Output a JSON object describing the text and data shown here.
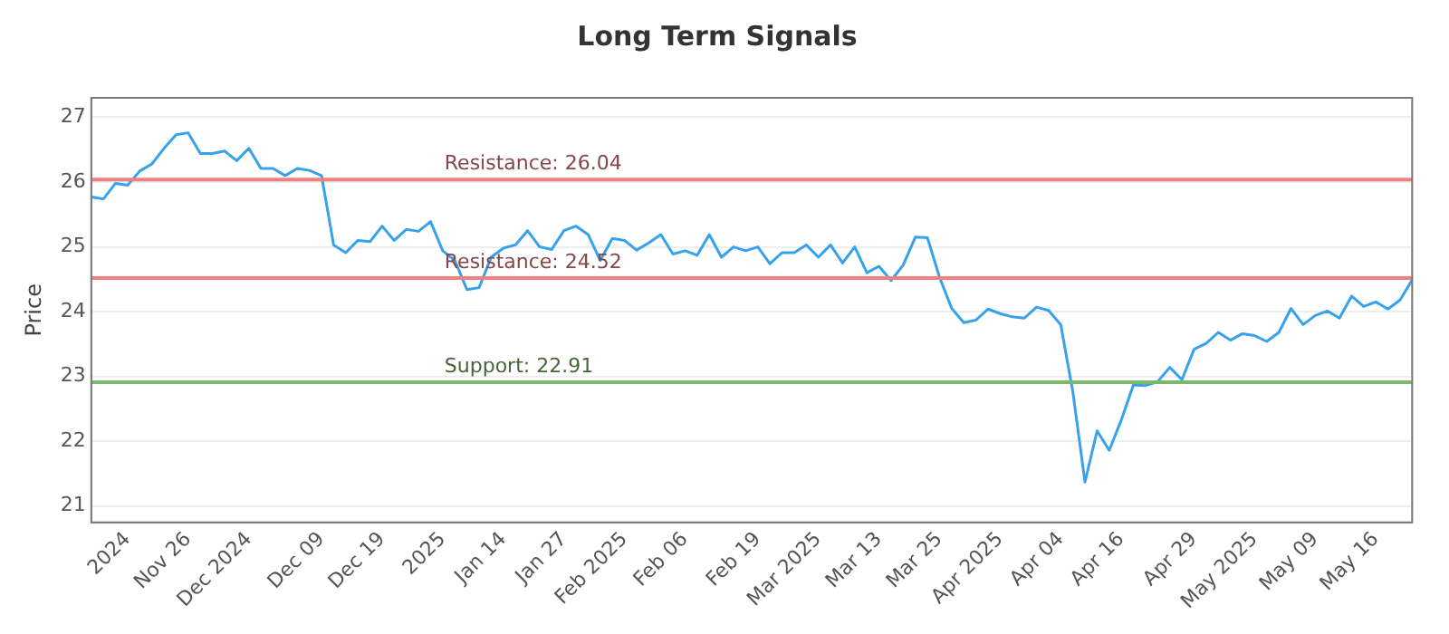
{
  "chart_data": {
    "type": "line",
    "title": "Long Term Signals",
    "ylabel": "Price",
    "categories": [
      null,
      null,
      null,
      "2024",
      null,
      null,
      null,
      null,
      "Nov 26",
      null,
      null,
      null,
      null,
      "Dec 2024",
      null,
      null,
      null,
      null,
      null,
      "Dec 09",
      null,
      null,
      null,
      null,
      "Dec 19",
      null,
      null,
      null,
      null,
      "2025",
      null,
      null,
      null,
      null,
      "Jan 14",
      null,
      null,
      null,
      null,
      "Jan 27",
      null,
      null,
      null,
      null,
      "Feb 2025",
      null,
      null,
      null,
      null,
      "Feb 06",
      null,
      null,
      null,
      null,
      null,
      "Feb 19",
      null,
      null,
      null,
      null,
      "Mar 2025",
      null,
      null,
      null,
      null,
      "Mar 13",
      null,
      null,
      null,
      null,
      "Mar 25",
      null,
      null,
      null,
      null,
      "Apr 2025",
      null,
      null,
      null,
      null,
      "Apr 04",
      null,
      null,
      null,
      null,
      "Apr 16",
      null,
      null,
      null,
      null,
      null,
      "Apr 29",
      null,
      null,
      null,
      null,
      "May 2025",
      null,
      null,
      null,
      null,
      "May 09",
      null,
      null,
      null,
      null,
      "May 16",
      null,
      null,
      null
    ],
    "series": [
      {
        "color": "#36a2eb",
        "values": [
          25.77,
          25.74,
          25.98,
          25.95,
          26.17,
          26.28,
          26.52,
          26.73,
          26.76,
          26.44,
          26.44,
          26.48,
          26.33,
          26.52,
          26.21,
          26.21,
          26.1,
          26.21,
          26.18,
          26.1,
          25.03,
          24.91,
          25.1,
          25.08,
          25.32,
          25.1,
          25.27,
          25.24,
          25.39,
          24.94,
          24.79,
          24.34,
          24.37,
          24.84,
          24.98,
          25.03,
          25.25,
          25.0,
          24.96,
          25.25,
          25.32,
          25.19,
          24.79,
          25.13,
          25.1,
          24.95,
          25.06,
          25.19,
          24.89,
          24.94,
          24.87,
          25.19,
          24.84,
          25.0,
          24.94,
          25.0,
          24.74,
          24.91,
          24.91,
          25.03,
          24.84,
          25.03,
          24.75,
          25.0,
          24.6,
          24.7,
          24.48,
          24.72,
          25.15,
          25.14,
          24.53,
          24.05,
          23.83,
          23.87,
          24.04,
          23.97,
          23.92,
          23.9,
          24.07,
          24.02,
          23.8,
          22.76,
          21.37,
          22.16,
          21.86,
          22.33,
          22.87,
          22.86,
          22.92,
          23.14,
          22.95,
          23.42,
          23.51,
          23.68,
          23.56,
          23.66,
          23.63,
          23.54,
          23.68,
          24.05,
          23.8,
          23.94,
          24.01,
          23.9,
          24.24,
          24.08,
          24.15,
          24.04,
          24.18,
          24.49
        ]
      }
    ],
    "ylim": [
      20.75,
      27.3
    ],
    "yticks": [
      21,
      22,
      23,
      24,
      25,
      26,
      27
    ],
    "grid": "y",
    "legend": false,
    "marker": "none",
    "line_style": "solid",
    "ref_lines": [
      {
        "axis": "y",
        "value": 26.04,
        "label": "Resistance: 26.04",
        "color": "#f08080"
      },
      {
        "axis": "y",
        "value": 24.52,
        "label": "Resistance: 24.52",
        "color": "#f08080"
      },
      {
        "axis": "y",
        "value": 22.91,
        "label": "Support: 22.91",
        "color": "#7cb86a"
      }
    ]
  }
}
